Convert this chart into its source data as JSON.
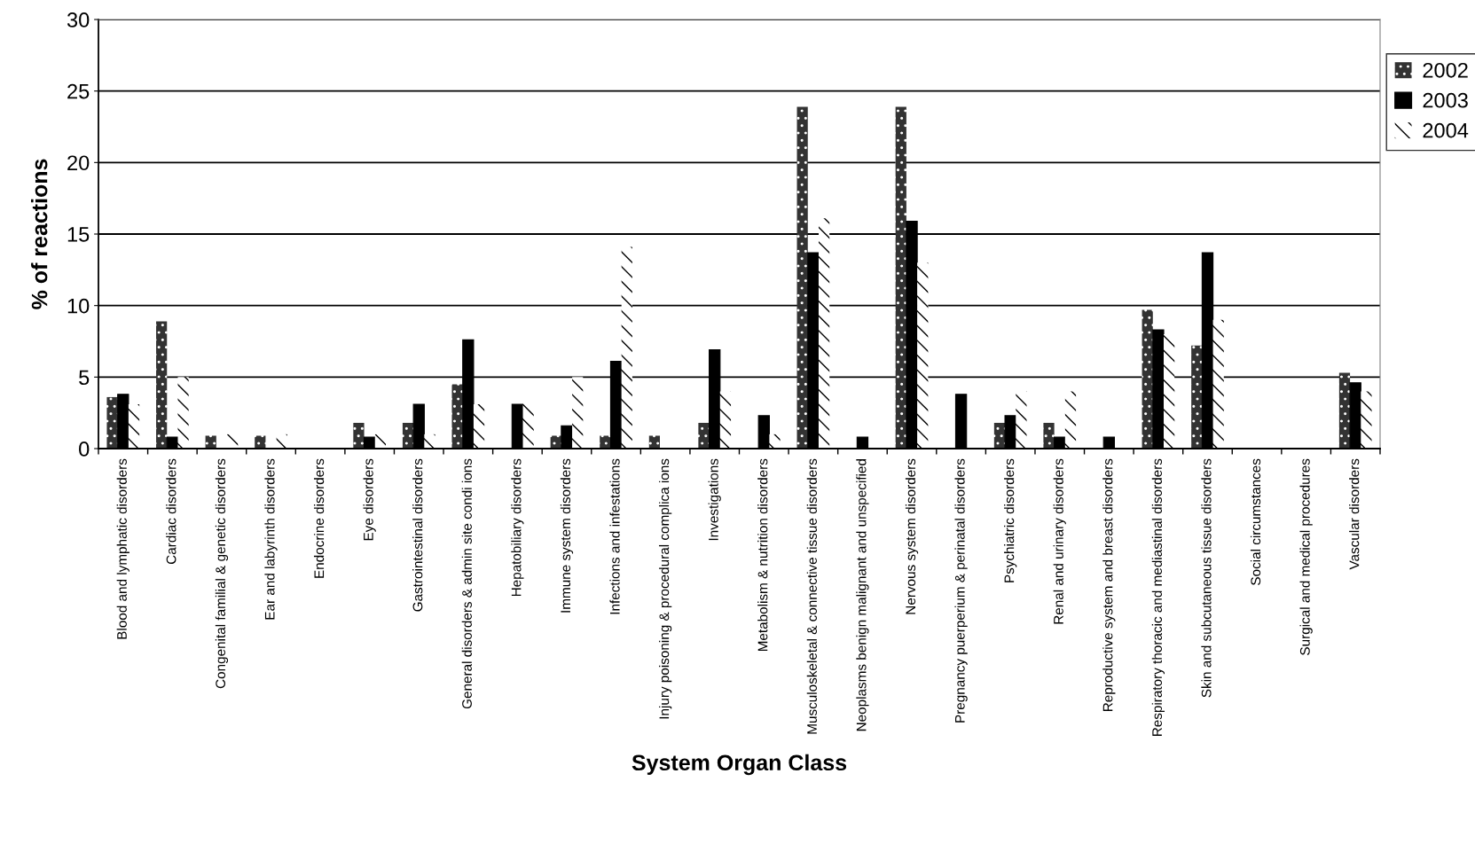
{
  "chart_data": {
    "type": "bar",
    "xlabel": "System Organ Class",
    "ylabel": "% of reactions",
    "categories": [
      "Blood and lymphatic disorders",
      "Cardiac disorders",
      "Congenital familial & genetic disorders",
      "Ear and labyrinth disorders",
      "Endocrine disorders",
      "Eye disorders",
      "Gastrointestinal disorders",
      "General disorders & admin site condi ions",
      "Hepatobiliary disorders",
      "Immune system disorders",
      "Infections and infestations",
      "Injury poisoning & procedural complica ions",
      "Investigations",
      "Metabolism & nutrition disorders",
      "Musculoskeletal & connective tissue disorders",
      "Neoplasms benign malignant and unspecified",
      "Nervous system disorders",
      "Pregnancy puerperium & perinatal disorders",
      "Psychiatric disorders",
      "Renal and urinary disorders",
      "Reproductive system and breast disorders",
      "Respiratory thoracic and mediastinal disorders",
      "Skin and subcutaneous tissue disorders",
      "Social circumstances",
      "Surgical and medical procedures",
      "Vascular disorders"
    ],
    "series": [
      {
        "name": "2002",
        "color": "#333333",
        "values": [
          3.6,
          8.9,
          0.9,
          0.9,
          null,
          1.8,
          1.8,
          4.5,
          null,
          0.9,
          0.9,
          0.9,
          1.8,
          null,
          23.9,
          null,
          23.9,
          null,
          1.8,
          1.8,
          null,
          9.7,
          7.2,
          null,
          null,
          5.3
        ]
      },
      {
        "name": "2003",
        "color": "#000000",
        "values": [
          3.8,
          0.8,
          null,
          null,
          null,
          0.8,
          3.1,
          7.6,
          3.1,
          1.6,
          6.1,
          null,
          6.9,
          2.3,
          13.7,
          0.8,
          15.9,
          3.8,
          2.3,
          0.8,
          0.8,
          8.3,
          13.7,
          null,
          null,
          4.6
        ]
      },
      {
        "name": "2004",
        "color": "#ffffff",
        "values": [
          3.1,
          5.0,
          1.0,
          1.0,
          null,
          1.0,
          1.0,
          3.1,
          3.1,
          5.0,
          14.1,
          null,
          4.0,
          1.0,
          16.1,
          null,
          13.0,
          null,
          4.0,
          4.0,
          null,
          8.0,
          9.0,
          null,
          null,
          4.0
        ]
      }
    ],
    "ylim": [
      0,
      30
    ],
    "yticks": [
      0,
      5,
      10,
      15,
      20,
      25,
      30
    ],
    "grid": "y",
    "legend": "top right"
  }
}
